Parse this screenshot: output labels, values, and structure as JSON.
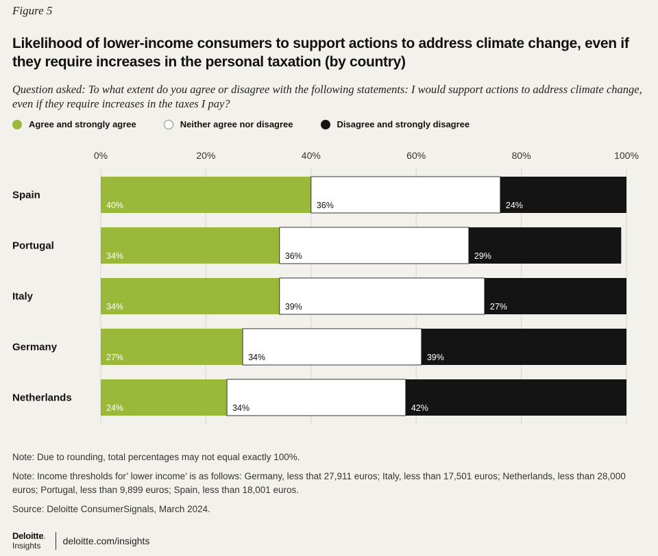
{
  "figure_label": "Figure 5",
  "title": "Likelihood of lower-income consumers to support actions to address climate change, even if they require increases in the personal taxation (by country)",
  "question": "Question asked: To what extent do you agree or disagree with the following statements: I would support actions to address climate change, even if they require increases in the taxes I pay?",
  "colors": {
    "agree": "#9ab93b",
    "neither": "#ffffff",
    "disagree": "#141414",
    "grid": "#d6d5cf"
  },
  "chart_data": {
    "type": "bar",
    "orientation": "horizontal",
    "stacked": true,
    "xlim": [
      0,
      100
    ],
    "ticks": [
      "0%",
      "20%",
      "40%",
      "60%",
      "80%",
      "100%"
    ],
    "categories": [
      "Spain",
      "Portugal",
      "Italy",
      "Germany",
      "Netherlands"
    ],
    "series": [
      {
        "name": "Agree and strongly agree",
        "key": "agree",
        "values": [
          40,
          34,
          34,
          27,
          24
        ]
      },
      {
        "name": "Neither agree nor disagree",
        "key": "neither",
        "values": [
          36,
          36,
          39,
          34,
          34
        ]
      },
      {
        "name": "Disagree and strongly disagree",
        "key": "disagree",
        "values": [
          24,
          29,
          27,
          39,
          42
        ]
      }
    ],
    "legend_position": "top-left"
  },
  "notes": [
    "Note: Due to rounding, total percentages may not equal exactly 100%.",
    "Note: Income thresholds for’ lower income’ is as follows: Germany, less that 27,911 euros; Italy, less than 17,501 euros; Netherlands, less than 28,000 euros; Portugal, less than 9,899 euros; Spain, less than 18,001 euros.",
    "Source: Deloitte ConsumerSignals, March 2024."
  ],
  "footer": {
    "brand": "Deloitte",
    "brand_dot": ".",
    "brand_sub": "Insights",
    "url": "deloitte.com/insights"
  }
}
